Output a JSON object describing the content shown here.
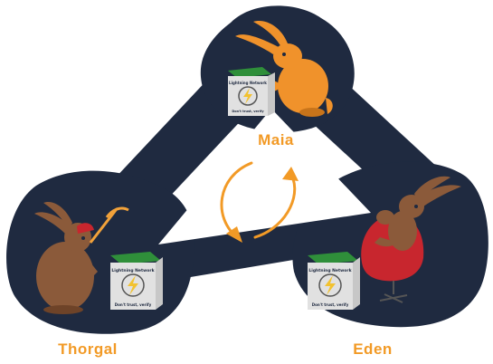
{
  "colors": {
    "network": "#1f2a40",
    "accent": "#f29a26",
    "box_face": "#e1e1e1",
    "box_side": "#c7c7c7",
    "box_top": "#2f8f3a",
    "bunny_orange": "#f0922b",
    "bunny_brown": "#8b5a3a",
    "chair_red": "#c8262e",
    "background": "#ffffff"
  },
  "nodes": [
    {
      "id": "maia",
      "label": "Maia",
      "box": {
        "title": "Lightning Network",
        "motto": "Don't trust, verify"
      }
    },
    {
      "id": "thorgal",
      "label": "Thorgal",
      "box": {
        "title": "Lightning Network",
        "motto": "Don't trust, verify"
      }
    },
    {
      "id": "eden",
      "label": "Eden",
      "box": {
        "title": "Lightning Network",
        "motto": "Don't trust, verify"
      }
    }
  ],
  "cycle_icon": "circular-arrows-icon",
  "box_icon": "lightning-bolt-icon"
}
